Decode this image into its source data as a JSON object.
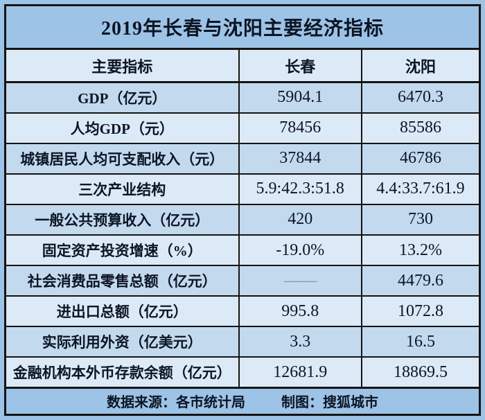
{
  "title": "2019年长春与沈阳主要经济指标",
  "colors": {
    "page_background": "#9dc3e6",
    "row_dark": "#c3d9ee",
    "row_light": "#dce9f6",
    "border": "#141414",
    "text": "#0c1524",
    "dash_placeholder": "#7e98ab"
  },
  "chart_data": {
    "type": "table",
    "title": "2019年长春与沈阳主要经济指标",
    "columns": [
      "主要指标",
      "长春",
      "沈阳"
    ],
    "rows": [
      {
        "indicator": "GDP（亿元）",
        "changchun": "5904.1",
        "shenyang": "6470.3"
      },
      {
        "indicator": "人均GDP（元）",
        "changchun": "78456",
        "shenyang": "85586"
      },
      {
        "indicator": "城镇居民人均可支配收入（元）",
        "changchun": "37844",
        "shenyang": "46786"
      },
      {
        "indicator": "三次产业结构",
        "changchun": "5.9:42.3:51.8",
        "shenyang": "4.4:33.7:61.9"
      },
      {
        "indicator": "一般公共预算收入（亿元）",
        "changchun": "420",
        "shenyang": "730"
      },
      {
        "indicator": "固定资产投资增速（%）",
        "changchun": "-19.0%",
        "shenyang": "13.2%"
      },
      {
        "indicator": "社会消费品零售总额（亿元）",
        "changchun": "——",
        "shenyang": "4479.6"
      },
      {
        "indicator": "进出口总额（亿元）",
        "changchun": "995.8",
        "shenyang": "1072.8"
      },
      {
        "indicator": "实际利用外资（亿美元）",
        "changchun": "3.3",
        "shenyang": "16.5"
      },
      {
        "indicator": "金融机构本外币存款余额（亿元）",
        "changchun": "12681.9",
        "shenyang": "18869.5"
      }
    ],
    "footer": {
      "source": "数据来源：各市统计局",
      "credit": "制图：搜狐城市"
    }
  }
}
